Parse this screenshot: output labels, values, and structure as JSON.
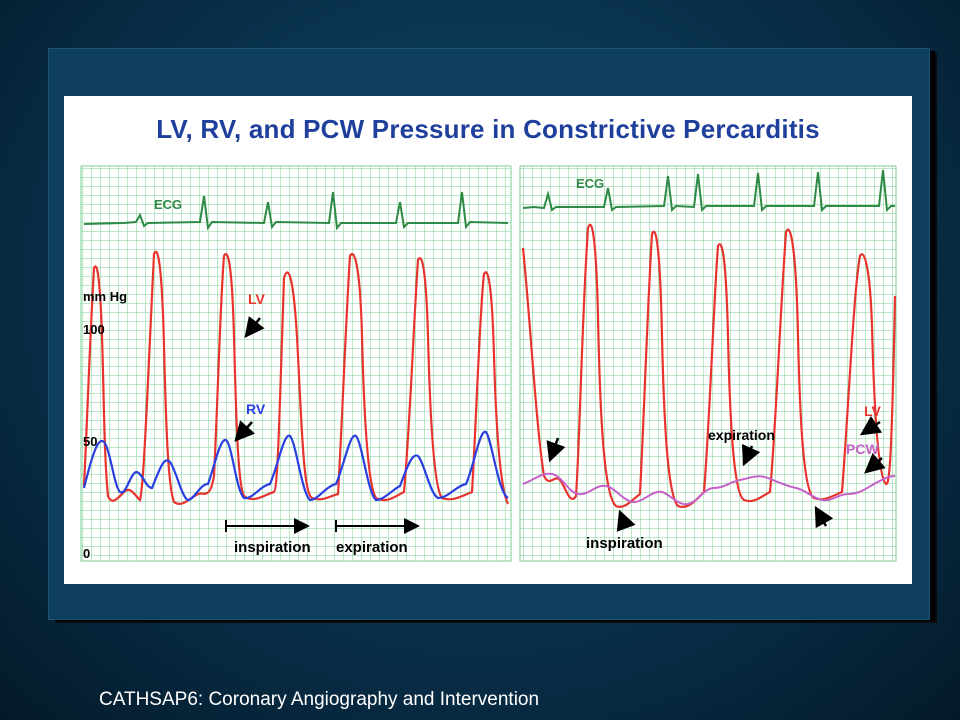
{
  "slide": {
    "figure_title": "LV, RV, and PCW Pressure in Constrictive Percarditis",
    "footer": "CATHSAP6:  Coronary Angiography and Intervention"
  },
  "left_panel": {
    "ecg_label": "ECG",
    "y_unit": "mm Hg",
    "y_ticks": [
      "100",
      "50",
      "0"
    ],
    "lv_label": "LV",
    "rv_label": "RV",
    "inspiration_label": "inspiration",
    "expiration_label": "expiration"
  },
  "right_panel": {
    "ecg_label": "ECG",
    "expiration_label": "expiration",
    "inspiration_label": "inspiration",
    "lv_label": "LV",
    "pcw_label": "PCW"
  },
  "colors": {
    "lv": "#e8342e",
    "rv": "#2a3fe0",
    "pcw": "#c462c8",
    "ecg": "#2f8a46",
    "grid": "#7ecf95",
    "title": "#1f3f9c"
  }
}
